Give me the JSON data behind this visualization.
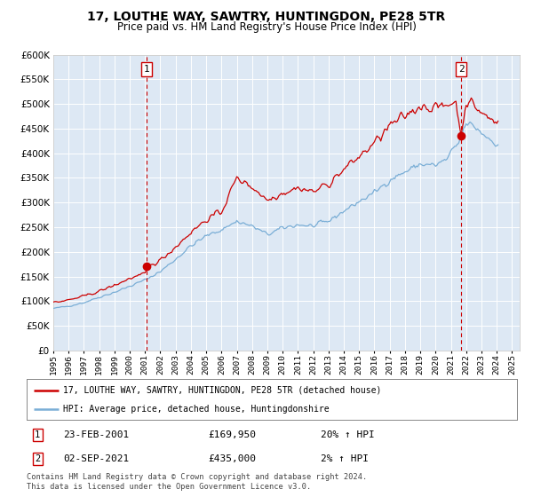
{
  "title": "17, LOUTHE WAY, SAWTRY, HUNTINGDON, PE28 5TR",
  "subtitle": "Price paid vs. HM Land Registry's House Price Index (HPI)",
  "legend_line1": "17, LOUTHE WAY, SAWTRY, HUNTINGDON, PE28 5TR (detached house)",
  "legend_line2": "HPI: Average price, detached house, Huntingdonshire",
  "footnote": "Contains HM Land Registry data © Crown copyright and database right 2024.\nThis data is licensed under the Open Government Licence v3.0.",
  "marker1_date": "23-FEB-2001",
  "marker1_price": "£169,950",
  "marker1_hpi": "20% ↑ HPI",
  "marker2_date": "02-SEP-2021",
  "marker2_price": "£435,000",
  "marker2_hpi": "2% ↑ HPI",
  "price_color": "#cc0000",
  "hpi_color": "#7aaed6",
  "background_color": "#dde8f4",
  "marker_dashed_color": "#cc0000",
  "ylim": [
    0,
    600000
  ],
  "yticks": [
    0,
    50000,
    100000,
    150000,
    200000,
    250000,
    300000,
    350000,
    400000,
    450000,
    500000,
    550000,
    600000
  ],
  "year_start": 1995,
  "year_end": 2025,
  "sale1_year": 2001.12,
  "sale1_price": 169950,
  "sale2_year": 2021.67,
  "sale2_price": 435000
}
